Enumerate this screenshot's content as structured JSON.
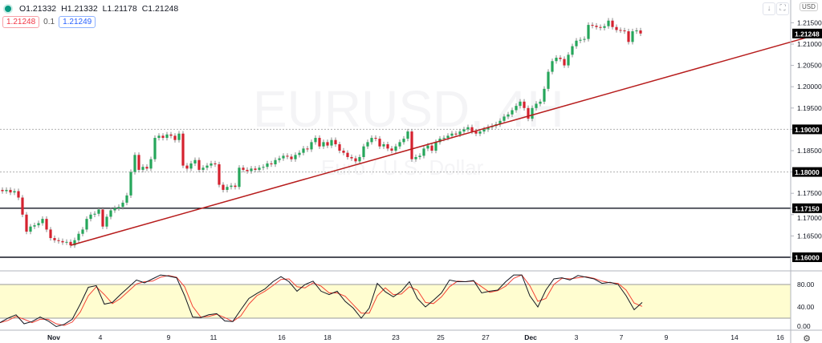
{
  "symbol_watermark": "EURUSD, 4H",
  "symbol_description_watermark": "Euro / U.S. Dollar",
  "legend": {
    "open": "O1.21332",
    "high": "H1.21332",
    "low": "L1.21178",
    "close": "C1.21248",
    "bid": "1.21248",
    "spread": "0.1",
    "ask": "1.21249"
  },
  "currency_label": "USD",
  "colors": {
    "up": "#26a65b",
    "down": "#d5222f",
    "trendline": "#b71c1c",
    "stoch_k": "#131722",
    "stoch_d": "#f44336",
    "stoch_band": "#fffdd0"
  },
  "chart_data": [
    {
      "type": "candlestick",
      "ylim": [
        1.1578,
        1.2205
      ],
      "y_ticks": [
        "1.21500",
        "1.21000",
        "1.20500",
        "1.20000",
        "1.19500",
        "1.19000",
        "1.18500",
        "1.18000",
        "1.17500",
        "1.17150",
        "1.17000",
        "1.16500",
        "1.16000"
      ],
      "y_tick_values": [
        1.215,
        1.21,
        1.205,
        1.2,
        1.195,
        1.19,
        1.185,
        1.18,
        1.175,
        1.1715,
        1.17,
        1.165,
        1.16
      ],
      "x_ticks": [
        "Nov",
        "4",
        "9",
        "11",
        "16",
        "18",
        "23",
        "25",
        "27",
        "Dec",
        "3",
        "7",
        "9",
        "14",
        "16"
      ],
      "last_price": "1.21248",
      "horizontal_levels": [
        {
          "label": "1.19000",
          "value": 1.19,
          "style": "dotted"
        },
        {
          "label": "1.18000",
          "value": 1.18,
          "style": "dotted"
        },
        {
          "label": "1.17150",
          "value": 1.1715,
          "style": "solid"
        },
        {
          "label": "1.16000",
          "value": 1.16,
          "style": "solid"
        }
      ],
      "trendline": {
        "from_price": 1.1628,
        "from_candle": 17,
        "to_price": 1.2125,
        "to_candle": 204
      },
      "closes": [
        1.1755,
        1.1758,
        1.1752,
        1.1755,
        1.174,
        1.17,
        1.166,
        1.1672,
        1.1675,
        1.168,
        1.169,
        1.1665,
        1.1645,
        1.164,
        1.1638,
        1.1635,
        1.1636,
        1.1628,
        1.164,
        1.1655,
        1.1665,
        1.169,
        1.17,
        1.1702,
        1.1712,
        1.1672,
        1.1695,
        1.171,
        1.1715,
        1.1718,
        1.1728,
        1.1745,
        1.18,
        1.184,
        1.1805,
        1.1812,
        1.1808,
        1.183,
        1.188,
        1.1885,
        1.188,
        1.1888,
        1.1885,
        1.1875,
        1.189,
        1.1815,
        1.1808,
        1.182,
        1.1828,
        1.1805,
        1.181,
        1.1815,
        1.182,
        1.1818,
        1.177,
        1.1758,
        1.1765,
        1.1768,
        1.1765,
        1.181,
        1.1805,
        1.1802,
        1.1808,
        1.1805,
        1.181,
        1.1812,
        1.182,
        1.1818,
        1.1828,
        1.1832,
        1.1838,
        1.1836,
        1.183,
        1.184,
        1.1845,
        1.1855,
        1.1853,
        1.187,
        1.188,
        1.186,
        1.187,
        1.1862,
        1.1875,
        1.1865,
        1.185,
        1.1845,
        1.1835,
        1.1832,
        1.1825,
        1.1835,
        1.186,
        1.187,
        1.188,
        1.1878,
        1.186,
        1.1865,
        1.1855,
        1.185,
        1.186,
        1.187,
        1.1878,
        1.1895,
        1.183,
        1.1835,
        1.1838,
        1.1855,
        1.1862,
        1.185,
        1.187,
        1.1878,
        1.188,
        1.1885,
        1.189,
        1.1888,
        1.1895,
        1.19,
        1.1905,
        1.1895,
        1.189,
        1.1895,
        1.19,
        1.1905,
        1.1908,
        1.1912,
        1.192,
        1.193,
        1.1935,
        1.1945,
        1.1955,
        1.1965,
        1.195,
        1.1925,
        1.195,
        1.196,
        1.1965,
        1.1995,
        1.2035,
        1.206,
        1.2068,
        1.2065,
        1.205,
        1.2075,
        1.2095,
        1.2108,
        1.211,
        1.2112,
        1.2145,
        1.2143,
        1.214,
        1.2138,
        1.2142,
        1.2155,
        1.214,
        1.2133,
        1.2132,
        1.213,
        1.2105,
        1.213,
        1.2132,
        1.21248
      ]
    },
    {
      "type": "line",
      "ylim": [
        0,
        100
      ],
      "y_ticks": [
        "80.00",
        "40.00",
        "0.00"
      ],
      "y_tick_values": [
        80,
        40,
        0
      ],
      "band": [
        20,
        80
      ],
      "series": [
        {
          "values": [
            12,
            20,
            26,
            10,
            14,
            22,
            15,
            5,
            9,
            18,
            45,
            75,
            78,
            45,
            48,
            62,
            75,
            88,
            83,
            90,
            97,
            95,
            92,
            60,
            22,
            21,
            26,
            28,
            15,
            14,
            35,
            55,
            64,
            72,
            85,
            94,
            85,
            68,
            80,
            86,
            68,
            62,
            68,
            50,
            38,
            20,
            38,
            82,
            67,
            58,
            68,
            85,
            55,
            40,
            52,
            65,
            88,
            85,
            85,
            87,
            65,
            68,
            70,
            85,
            97,
            97,
            60,
            40,
            70,
            90,
            92,
            88,
            96,
            93,
            90,
            82,
            84,
            80,
            60,
            35,
            48
          ]
        },
        {
          "values": [
            12,
            16,
            23,
            18,
            12,
            18,
            18,
            10,
            7,
            13,
            31,
            60,
            76,
            62,
            46,
            55,
            68,
            81,
            85,
            86,
            93,
            96,
            93,
            76,
            41,
            22,
            23,
            27,
            21,
            14,
            24,
            45,
            60,
            68,
            78,
            89,
            90,
            76,
            74,
            83,
            77,
            65,
            65,
            59,
            44,
            29,
            29,
            60,
            74,
            62,
            63,
            76,
            70,
            48,
            46,
            58,
            76,
            86,
            85,
            86,
            76,
            66,
            69,
            77,
            91,
            97,
            78,
            50,
            55,
            80,
            91,
            90,
            92,
            94,
            91,
            86,
            83,
            82,
            70,
            47,
            41
          ]
        }
      ]
    }
  ]
}
